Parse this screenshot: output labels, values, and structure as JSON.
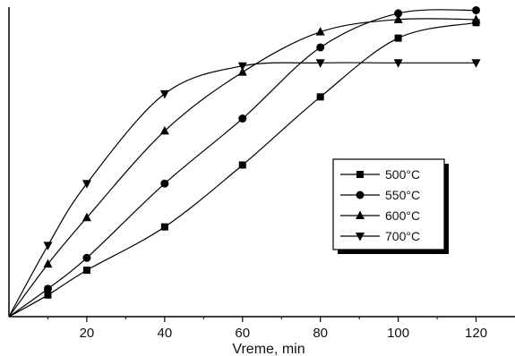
{
  "chart_data": {
    "type": "line",
    "title": "",
    "xlabel": "Vreme, min",
    "ylabel": "",
    "xlim": [
      0,
      130
    ],
    "ylim": [
      0,
      1
    ],
    "xticks": [
      20,
      40,
      60,
      80,
      100,
      120
    ],
    "grid": false,
    "legend_position": "right",
    "series": [
      {
        "name": "500°C",
        "marker": "square",
        "x": [
          10,
          20,
          40,
          60,
          80,
          100,
          120
        ],
        "y": [
          0.07,
          0.15,
          0.29,
          0.49,
          0.71,
          0.9,
          0.95
        ]
      },
      {
        "name": "550°C",
        "marker": "circle",
        "x": [
          10,
          20,
          40,
          60,
          80,
          100,
          120
        ],
        "y": [
          0.09,
          0.19,
          0.43,
          0.64,
          0.87,
          0.98,
          0.99
        ]
      },
      {
        "name": "600°C",
        "marker": "triangle-up",
        "x": [
          10,
          20,
          40,
          60,
          80,
          100,
          120
        ],
        "y": [
          0.17,
          0.32,
          0.6,
          0.79,
          0.92,
          0.96,
          0.96
        ]
      },
      {
        "name": "700°C",
        "marker": "triangle-down",
        "x": [
          10,
          20,
          40,
          60,
          80,
          100,
          120
        ],
        "y": [
          0.23,
          0.43,
          0.72,
          0.81,
          0.82,
          0.82,
          0.82
        ]
      }
    ]
  }
}
